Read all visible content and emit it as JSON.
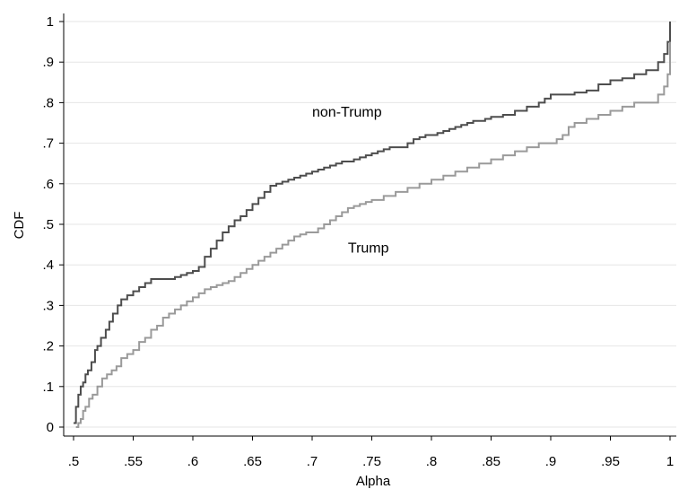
{
  "chart_data": {
    "type": "line",
    "title": "",
    "xlabel": "Alpha",
    "ylabel": "CDF",
    "xlim": [
      0.5,
      1.0
    ],
    "ylim": [
      0,
      1.0
    ],
    "grid": true,
    "x_ticks": [
      0.5,
      0.55,
      0.6,
      0.65,
      0.7,
      0.75,
      0.8,
      0.85,
      0.9,
      0.95,
      1.0
    ],
    "x_tick_labels": [
      ".5",
      ".55",
      ".6",
      ".65",
      ".7",
      ".75",
      ".8",
      ".85",
      ".9",
      ".95",
      "1"
    ],
    "y_ticks": [
      0,
      0.1,
      0.2,
      0.3,
      0.4,
      0.5,
      0.6,
      0.7,
      0.8,
      0.9,
      1.0
    ],
    "y_tick_labels": [
      "0",
      ".1",
      ".2",
      ".3",
      ".4",
      ".5",
      ".6",
      ".7",
      ".8",
      ".9",
      "1"
    ],
    "annotations": [
      {
        "text": "non-Trump",
        "x": 0.7,
        "y": 0.765
      },
      {
        "text": "Trump",
        "x": 0.73,
        "y": 0.43
      }
    ],
    "series": [
      {
        "name": "non-Trump",
        "color": "#4d4d4d",
        "x": [
          0.5,
          0.502,
          0.504,
          0.506,
          0.508,
          0.51,
          0.512,
          0.515,
          0.518,
          0.52,
          0.523,
          0.527,
          0.53,
          0.533,
          0.537,
          0.54,
          0.545,
          0.55,
          0.555,
          0.56,
          0.565,
          0.57,
          0.575,
          0.58,
          0.585,
          0.59,
          0.595,
          0.6,
          0.605,
          0.61,
          0.615,
          0.62,
          0.625,
          0.63,
          0.635,
          0.64,
          0.645,
          0.65,
          0.655,
          0.66,
          0.665,
          0.67,
          0.675,
          0.68,
          0.685,
          0.69,
          0.695,
          0.7,
          0.705,
          0.71,
          0.715,
          0.72,
          0.725,
          0.73,
          0.735,
          0.74,
          0.745,
          0.75,
          0.755,
          0.76,
          0.765,
          0.77,
          0.775,
          0.78,
          0.785,
          0.79,
          0.795,
          0.8,
          0.805,
          0.81,
          0.815,
          0.82,
          0.825,
          0.83,
          0.835,
          0.84,
          0.845,
          0.85,
          0.86,
          0.87,
          0.88,
          0.89,
          0.895,
          0.9,
          0.91,
          0.92,
          0.93,
          0.94,
          0.95,
          0.96,
          0.97,
          0.98,
          0.99,
          0.995,
          0.998,
          1.0
        ],
        "y": [
          0.01,
          0.05,
          0.08,
          0.1,
          0.11,
          0.13,
          0.14,
          0.16,
          0.19,
          0.2,
          0.22,
          0.24,
          0.26,
          0.28,
          0.3,
          0.315,
          0.325,
          0.335,
          0.345,
          0.355,
          0.365,
          0.365,
          0.365,
          0.365,
          0.37,
          0.375,
          0.38,
          0.385,
          0.395,
          0.42,
          0.44,
          0.46,
          0.48,
          0.495,
          0.51,
          0.52,
          0.535,
          0.55,
          0.565,
          0.58,
          0.595,
          0.6,
          0.605,
          0.61,
          0.615,
          0.62,
          0.625,
          0.63,
          0.635,
          0.64,
          0.645,
          0.65,
          0.655,
          0.655,
          0.66,
          0.665,
          0.67,
          0.675,
          0.68,
          0.685,
          0.69,
          0.69,
          0.69,
          0.7,
          0.71,
          0.715,
          0.72,
          0.72,
          0.725,
          0.73,
          0.735,
          0.74,
          0.745,
          0.75,
          0.755,
          0.755,
          0.76,
          0.765,
          0.77,
          0.78,
          0.79,
          0.8,
          0.81,
          0.82,
          0.82,
          0.825,
          0.83,
          0.845,
          0.855,
          0.86,
          0.87,
          0.88,
          0.9,
          0.92,
          0.95,
          1.0
        ]
      },
      {
        "name": "Trump",
        "color": "#9a9a9a",
        "x": [
          0.502,
          0.504,
          0.506,
          0.508,
          0.51,
          0.513,
          0.516,
          0.52,
          0.524,
          0.528,
          0.532,
          0.536,
          0.54,
          0.545,
          0.55,
          0.555,
          0.56,
          0.565,
          0.57,
          0.575,
          0.58,
          0.585,
          0.59,
          0.595,
          0.6,
          0.605,
          0.61,
          0.615,
          0.62,
          0.625,
          0.63,
          0.635,
          0.64,
          0.645,
          0.65,
          0.655,
          0.66,
          0.665,
          0.67,
          0.675,
          0.68,
          0.685,
          0.69,
          0.695,
          0.7,
          0.705,
          0.71,
          0.715,
          0.72,
          0.725,
          0.73,
          0.735,
          0.74,
          0.745,
          0.75,
          0.76,
          0.77,
          0.78,
          0.79,
          0.8,
          0.81,
          0.82,
          0.83,
          0.84,
          0.85,
          0.86,
          0.87,
          0.88,
          0.89,
          0.9,
          0.905,
          0.91,
          0.915,
          0.92,
          0.93,
          0.94,
          0.95,
          0.96,
          0.97,
          0.98,
          0.99,
          0.995,
          0.998,
          1.0
        ],
        "y": [
          0.0,
          0.01,
          0.02,
          0.04,
          0.05,
          0.07,
          0.08,
          0.1,
          0.12,
          0.13,
          0.14,
          0.15,
          0.17,
          0.18,
          0.19,
          0.21,
          0.22,
          0.24,
          0.25,
          0.27,
          0.28,
          0.29,
          0.3,
          0.31,
          0.32,
          0.33,
          0.34,
          0.345,
          0.35,
          0.355,
          0.36,
          0.37,
          0.38,
          0.39,
          0.4,
          0.41,
          0.42,
          0.43,
          0.44,
          0.45,
          0.46,
          0.47,
          0.475,
          0.48,
          0.48,
          0.49,
          0.5,
          0.51,
          0.52,
          0.53,
          0.54,
          0.545,
          0.55,
          0.555,
          0.56,
          0.57,
          0.58,
          0.59,
          0.6,
          0.61,
          0.62,
          0.63,
          0.64,
          0.65,
          0.66,
          0.67,
          0.68,
          0.69,
          0.7,
          0.7,
          0.71,
          0.72,
          0.74,
          0.75,
          0.76,
          0.77,
          0.78,
          0.79,
          0.8,
          0.8,
          0.82,
          0.84,
          0.87,
          0.95
        ]
      }
    ]
  }
}
